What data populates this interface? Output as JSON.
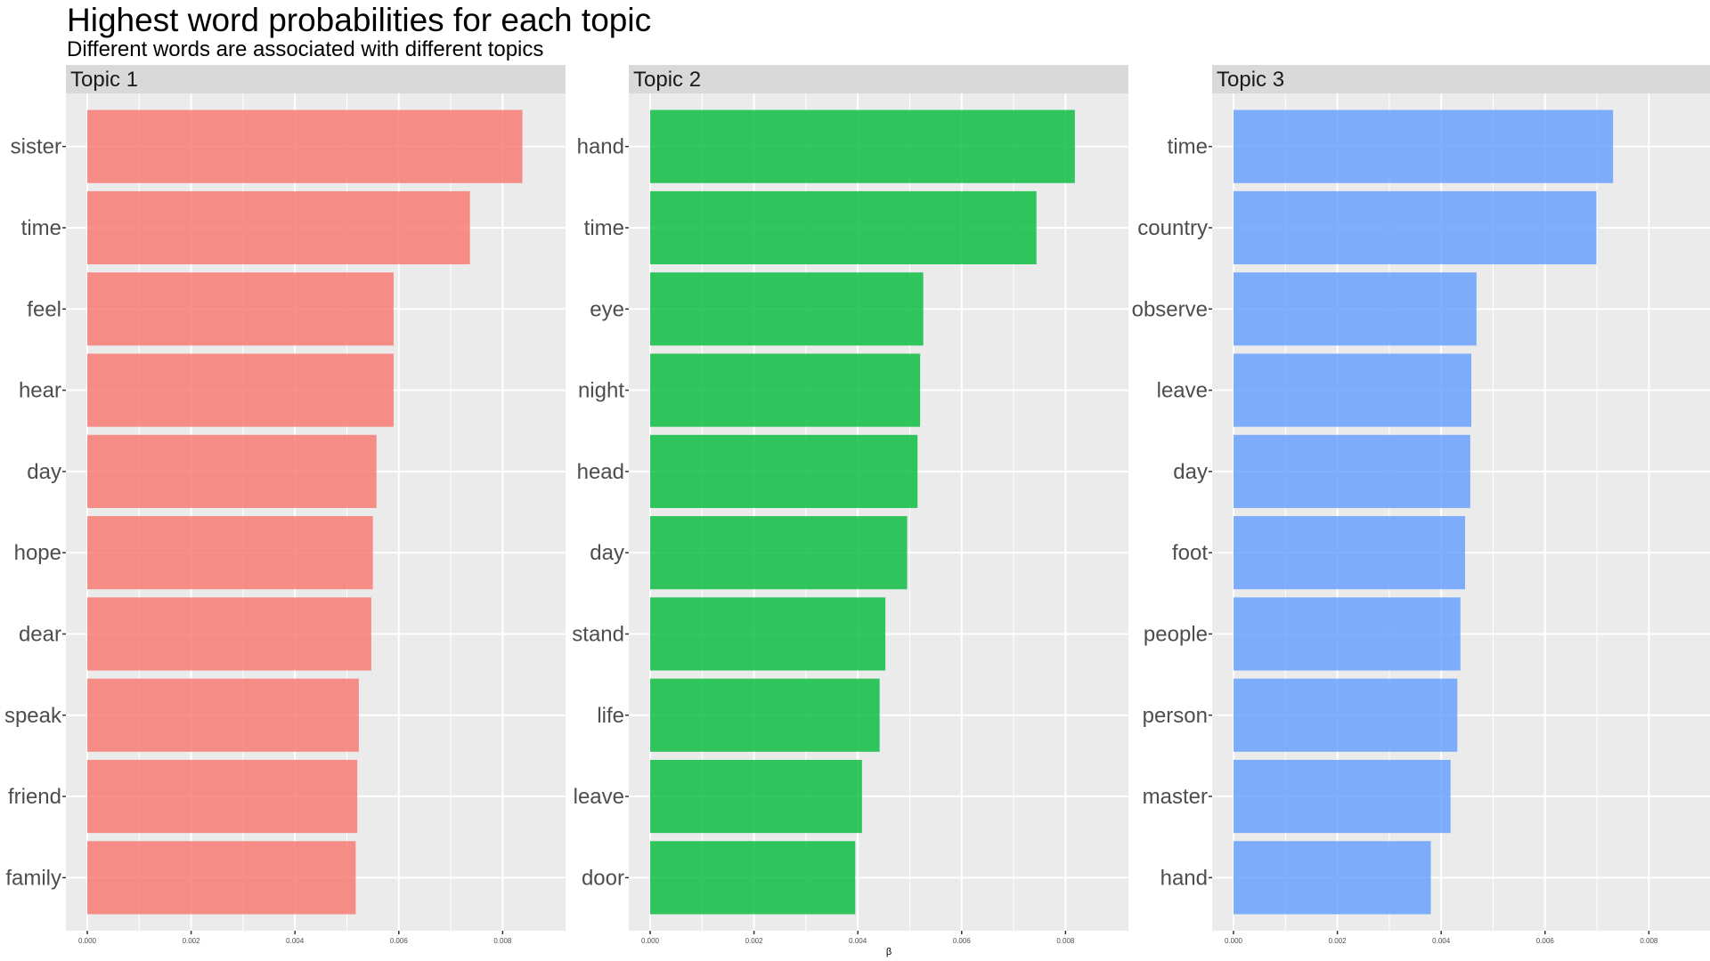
{
  "chart_data": {
    "type": "bar",
    "orientation": "horizontal",
    "title": "Highest word probabilities for each topic",
    "subtitle": "Different words are associated with different topics",
    "xlabel": "β",
    "ylabel": "",
    "xlim": [
      0,
      0.0088
    ],
    "xticks": [
      "0.000",
      "0.002",
      "0.004",
      "0.006",
      "0.008"
    ],
    "grid": true,
    "legend": "none",
    "facets": [
      {
        "label": "Topic 1",
        "color": "#F8766D",
        "categories": [
          "sister",
          "time",
          "feel",
          "hear",
          "day",
          "hope",
          "dear",
          "speak",
          "friend",
          "family"
        ],
        "values": [
          0.00838,
          0.00737,
          0.0059,
          0.0059,
          0.00557,
          0.0055,
          0.00547,
          0.00523,
          0.0052,
          0.00517
        ]
      },
      {
        "label": "Topic 2",
        "color": "#00BA38",
        "categories": [
          "hand",
          "time",
          "eye",
          "night",
          "head",
          "day",
          "stand",
          "life",
          "leave",
          "door"
        ],
        "values": [
          0.00818,
          0.00744,
          0.00526,
          0.0052,
          0.00515,
          0.00495,
          0.00453,
          0.00442,
          0.00408,
          0.00395
        ]
      },
      {
        "label": "Topic 3",
        "color": "#619CFF",
        "categories": [
          "time",
          "country",
          "observe",
          "leave",
          "day",
          "foot",
          "people",
          "person",
          "master",
          "hand"
        ],
        "values": [
          0.00731,
          0.00699,
          0.00468,
          0.00458,
          0.00456,
          0.00446,
          0.00437,
          0.00431,
          0.00418,
          0.0038
        ]
      }
    ]
  }
}
